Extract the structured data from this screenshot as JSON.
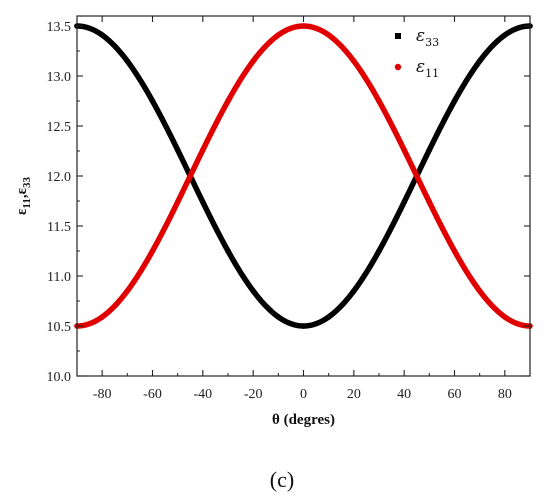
{
  "chart_data": {
    "type": "line",
    "xlabel": "θ (degres)",
    "ylabel": "ε11,ε33",
    "ylabel_parts": {
      "symbol1": "ε",
      "sub1": "11",
      "sep": ",",
      "symbol2": "ε",
      "sub2": "33"
    },
    "xlim": [
      -90,
      90
    ],
    "ylim": [
      10.0,
      13.6
    ],
    "x_ticks": [
      -80,
      -60,
      -40,
      -20,
      0,
      20,
      40,
      60,
      80
    ],
    "x_tick_labels": [
      "-80",
      "-60",
      "-40",
      "-20",
      "0",
      "20",
      "40",
      "60",
      "80"
    ],
    "y_ticks": [
      10.0,
      10.5,
      11.0,
      11.5,
      12.0,
      12.5,
      13.0,
      13.5
    ],
    "y_tick_labels": [
      "10.0",
      "10.5",
      "11.0",
      "11.5",
      "12.0",
      "12.5",
      "13.0",
      "13.5"
    ],
    "grid": false,
    "legend_position": "top-right",
    "series": [
      {
        "name": "ε33",
        "symbol": "ε",
        "subscript": "33",
        "color": "#000000",
        "marker": "square",
        "x": [
          -90,
          -80,
          -70,
          -60,
          -50,
          -45,
          -40,
          -30,
          -20,
          -10,
          0,
          10,
          20,
          30,
          40,
          45,
          50,
          60,
          70,
          80,
          90
        ],
        "y": [
          13.5,
          13.41,
          13.15,
          12.75,
          12.26,
          12.0,
          11.74,
          11.25,
          10.85,
          10.59,
          10.5,
          10.59,
          10.85,
          11.25,
          11.74,
          12.0,
          12.26,
          12.75,
          13.15,
          13.41,
          13.5
        ]
      },
      {
        "name": "ε11",
        "symbol": "ε",
        "subscript": "11",
        "color": "#e00000",
        "marker": "circle",
        "x": [
          -90,
          -80,
          -70,
          -60,
          -50,
          -45,
          -40,
          -30,
          -20,
          -10,
          0,
          10,
          20,
          30,
          40,
          45,
          50,
          60,
          70,
          80,
          90
        ],
        "y": [
          10.5,
          10.59,
          10.85,
          11.25,
          11.74,
          12.0,
          12.26,
          12.75,
          13.15,
          13.41,
          13.5,
          13.41,
          13.15,
          12.75,
          12.26,
          12.0,
          11.74,
          11.25,
          10.85,
          10.59,
          10.5
        ]
      }
    ]
  },
  "panel_label": "(c)"
}
